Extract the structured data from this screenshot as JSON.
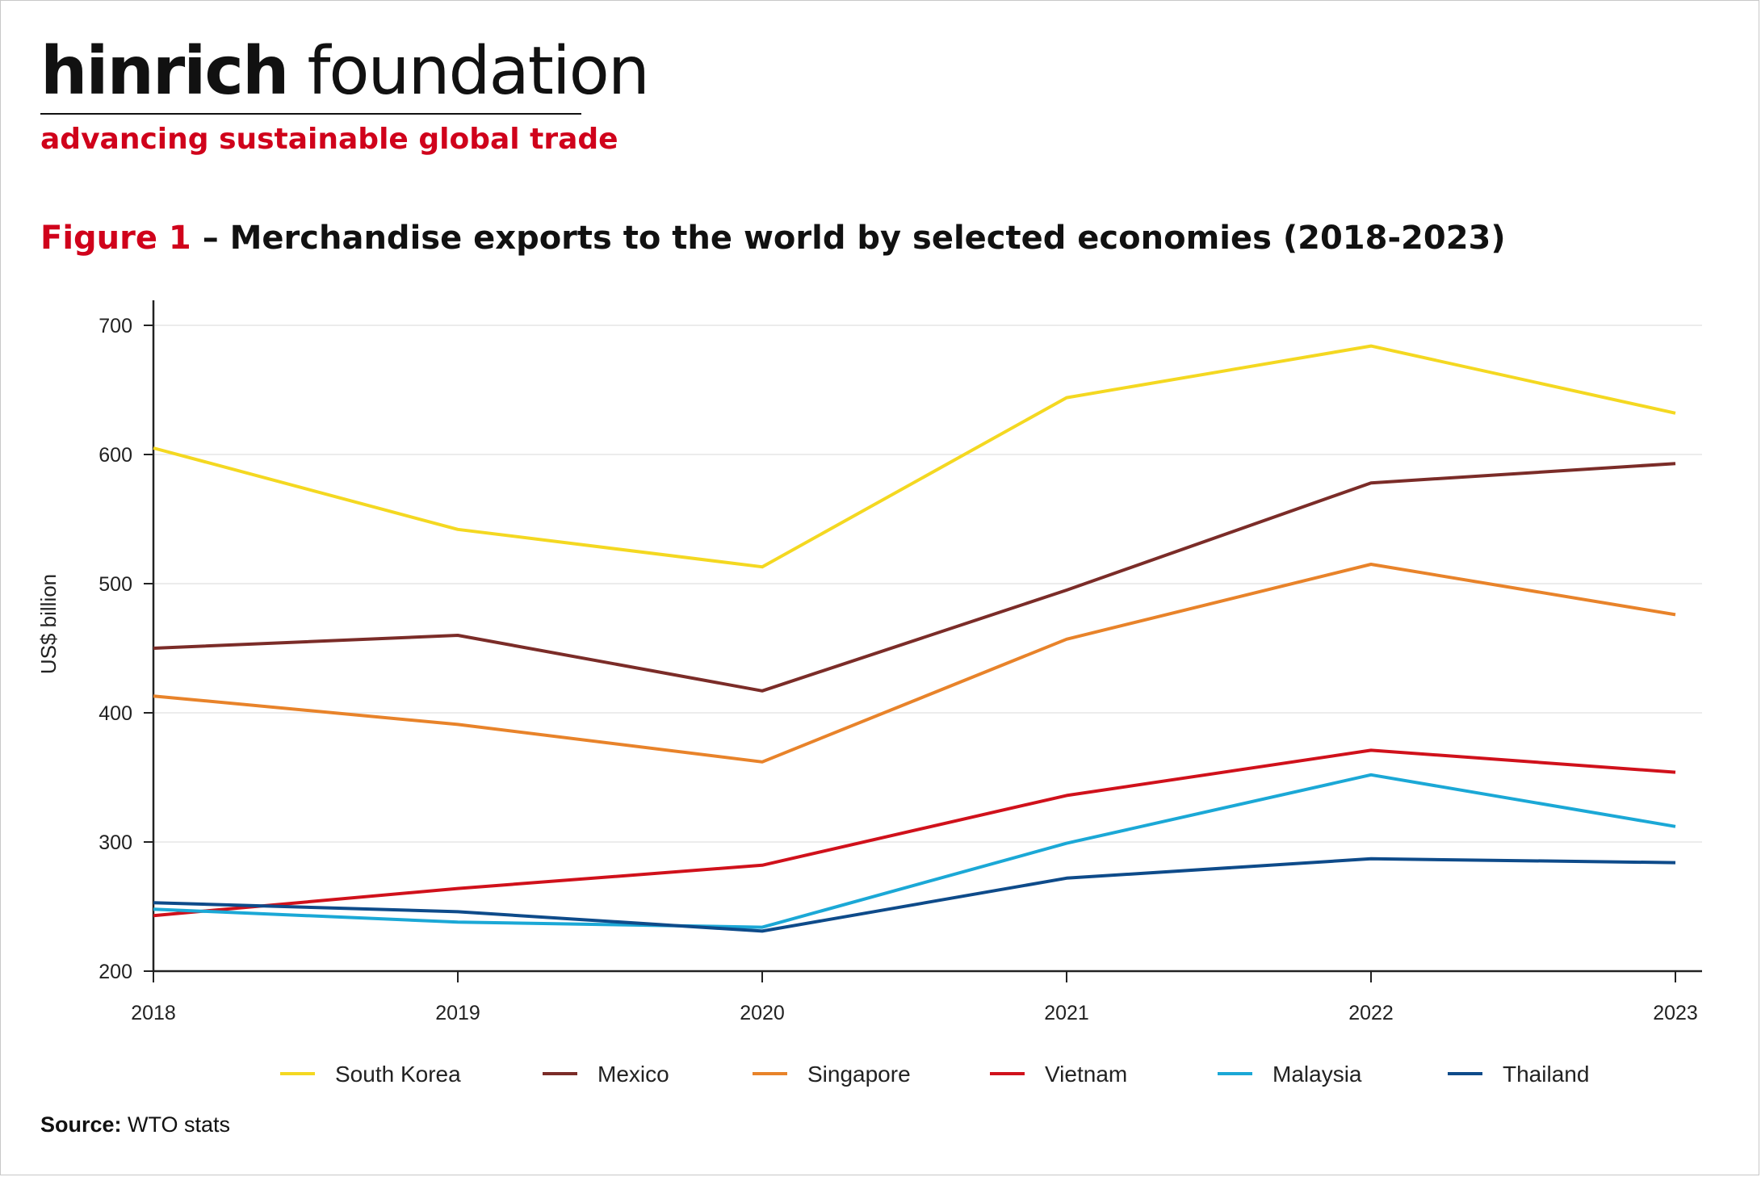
{
  "brand": {
    "name_bold": "hinrich",
    "name_light": " foundation",
    "tagline": "advancing sustainable global trade"
  },
  "title": {
    "figure_label": "Figure 1",
    "text": " – Merchandise exports to the world by selected economies (2018-2023)"
  },
  "source": {
    "label": "Source:",
    "text": " WTO stats"
  },
  "colors": {
    "brand_red": "#d0021b",
    "grid": "#e6e6e6",
    "axis": "#222222"
  },
  "chart_data": {
    "type": "line",
    "ylabel": "US$ billion",
    "xlabel": "",
    "ylim": [
      200,
      700
    ],
    "yticks": [
      200,
      300,
      400,
      500,
      600,
      700
    ],
    "grid": true,
    "legend_position": "bottom",
    "x": [
      "2018",
      "2019",
      "2020",
      "2021",
      "2022",
      "2023"
    ],
    "series": [
      {
        "name": "South Korea",
        "color": "#f4d821",
        "values": [
          605,
          542,
          513,
          644,
          684,
          632
        ]
      },
      {
        "name": "Mexico",
        "color": "#7b2c28",
        "values": [
          450,
          460,
          417,
          495,
          578,
          593
        ]
      },
      {
        "name": "Singapore",
        "color": "#e8832a",
        "values": [
          413,
          391,
          362,
          457,
          515,
          476
        ]
      },
      {
        "name": "Vietnam",
        "color": "#d0111b",
        "values": [
          243,
          264,
          282,
          336,
          371,
          354
        ]
      },
      {
        "name": "Malaysia",
        "color": "#1ba8d6",
        "values": [
          248,
          238,
          234,
          299,
          352,
          312
        ]
      },
      {
        "name": "Thailand",
        "color": "#0e4b8a",
        "values": [
          253,
          246,
          231,
          272,
          287,
          284
        ]
      }
    ]
  }
}
